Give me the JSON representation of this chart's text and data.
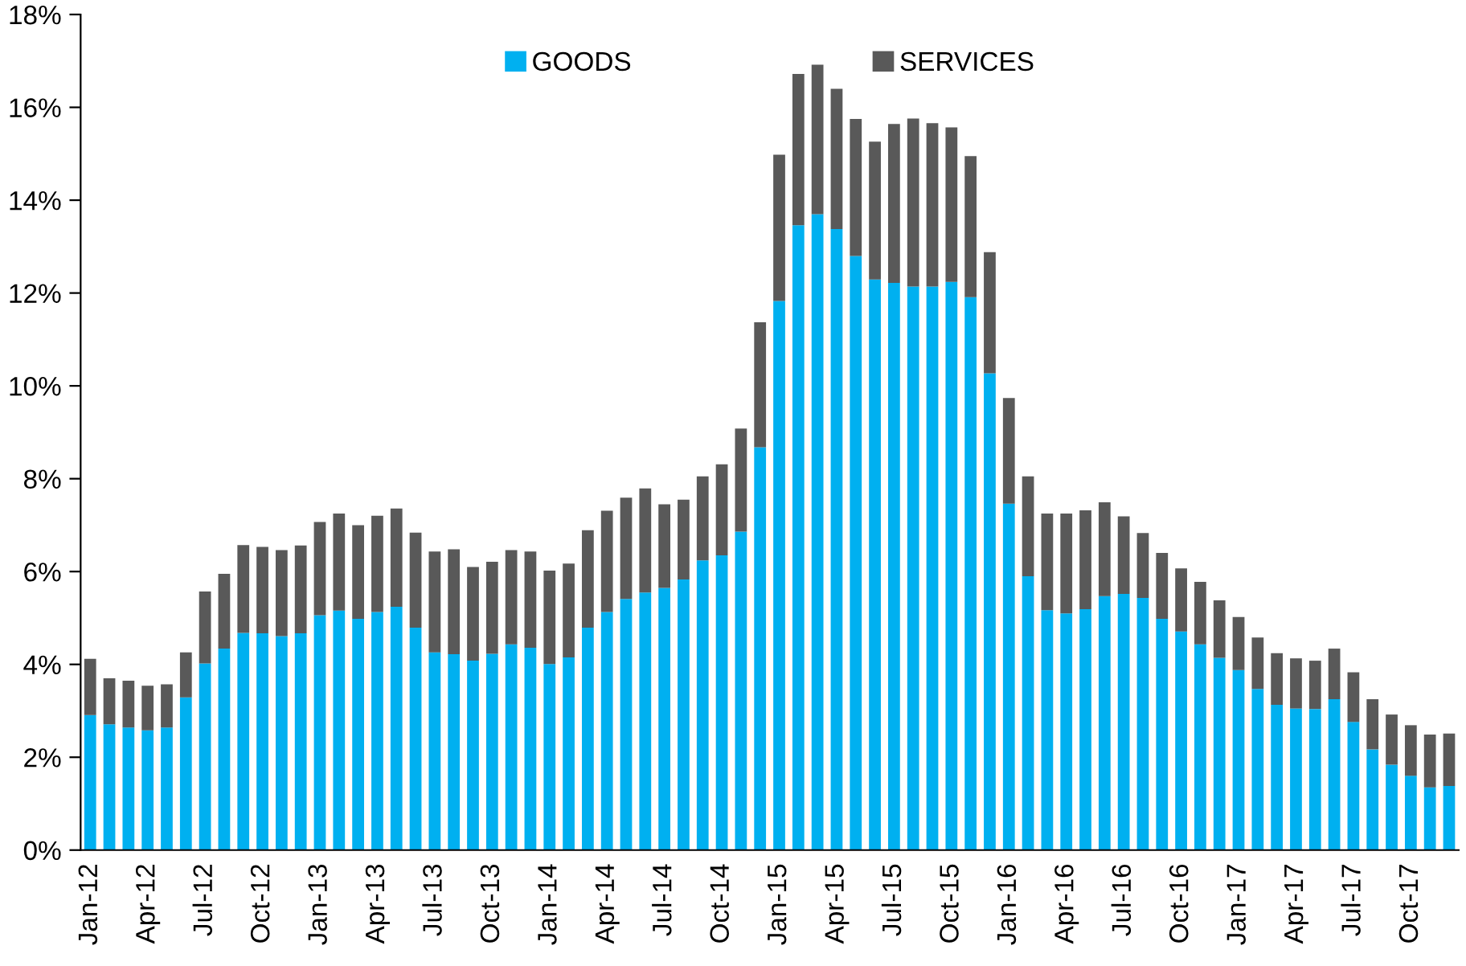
{
  "chart_data": {
    "type": "bar",
    "stacked": true,
    "categories": [
      "Jan-12",
      null,
      null,
      "Apr-12",
      null,
      null,
      "Jul-12",
      null,
      null,
      "Oct-12",
      null,
      null,
      "Jan-13",
      null,
      null,
      "Apr-13",
      null,
      null,
      "Jul-13",
      null,
      null,
      "Oct-13",
      null,
      null,
      "Jan-14",
      null,
      null,
      "Apr-14",
      null,
      null,
      "Jul-14",
      null,
      null,
      "Oct-14",
      null,
      null,
      "Jan-15",
      null,
      null,
      "Apr-15",
      null,
      null,
      "Jul-15",
      null,
      null,
      "Oct-15",
      null,
      null,
      "Jan-16",
      null,
      null,
      "Apr-16",
      null,
      null,
      "Jul-16",
      null,
      null,
      "Oct-16",
      null,
      null,
      "Jan-17",
      null,
      null,
      "Apr-17",
      null,
      null,
      "Jul-17",
      null,
      null,
      "Oct-17",
      null,
      null
    ],
    "series": [
      {
        "name": "GOODS",
        "color": "#00b0f0",
        "values": [
          2.91,
          2.71,
          2.64,
          2.58,
          2.64,
          3.29,
          4.02,
          4.34,
          4.68,
          4.67,
          4.61,
          4.67,
          5.06,
          5.16,
          4.98,
          5.13,
          5.24,
          4.79,
          4.26,
          4.22,
          4.08,
          4.23,
          4.43,
          4.36,
          4.01,
          4.15,
          4.79,
          5.13,
          5.41,
          5.55,
          5.65,
          5.83,
          6.24,
          6.35,
          6.86,
          8.68,
          11.83,
          13.46,
          13.7,
          13.38,
          12.8,
          12.29,
          12.22,
          12.14,
          12.14,
          12.24,
          11.91,
          10.27,
          7.46,
          5.9,
          5.17,
          5.1,
          5.19,
          5.47,
          5.52,
          5.43,
          4.98,
          4.71,
          4.43,
          4.14,
          3.88,
          3.47,
          3.13,
          3.05,
          3.04,
          3.25,
          2.76,
          2.17,
          1.84,
          1.6,
          1.35,
          1.38
        ]
      },
      {
        "name": "SERVICES",
        "color": "#595959",
        "values": [
          1.21,
          0.99,
          1.01,
          0.96,
          0.93,
          0.97,
          1.55,
          1.61,
          1.89,
          1.86,
          1.85,
          1.89,
          2.01,
          2.09,
          2.02,
          2.07,
          2.12,
          2.05,
          2.17,
          2.26,
          2.02,
          1.98,
          2.03,
          2.07,
          2.01,
          2.02,
          2.1,
          2.18,
          2.18,
          2.24,
          1.8,
          1.72,
          1.81,
          1.96,
          2.22,
          2.69,
          3.15,
          3.26,
          3.22,
          3.02,
          2.95,
          2.97,
          3.42,
          3.62,
          3.52,
          3.33,
          3.04,
          2.61,
          2.28,
          2.15,
          2.08,
          2.15,
          2.13,
          2.02,
          1.67,
          1.4,
          1.42,
          1.36,
          1.35,
          1.24,
          1.14,
          1.11,
          1.11,
          1.08,
          1.04,
          1.09,
          1.07,
          1.08,
          1.08,
          1.09,
          1.14,
          1.13
        ]
      }
    ],
    "ylim": [
      0,
      18
    ],
    "yticks": [
      {
        "value": 0,
        "label": "0%"
      },
      {
        "value": 2,
        "label": "2%"
      },
      {
        "value": 4,
        "label": "4%"
      },
      {
        "value": 6,
        "label": "6%"
      },
      {
        "value": 8,
        "label": "8%"
      },
      {
        "value": 10,
        "label": "10%"
      },
      {
        "value": 12,
        "label": "12%"
      },
      {
        "value": 14,
        "label": "14%"
      },
      {
        "value": 16,
        "label": "16%"
      },
      {
        "value": 18,
        "label": "18%"
      }
    ],
    "grid": false,
    "legend": "top"
  }
}
